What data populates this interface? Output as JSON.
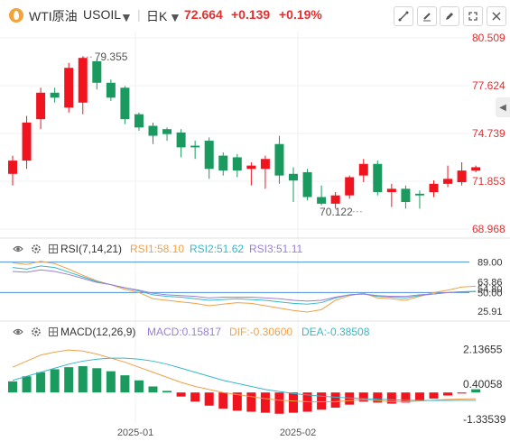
{
  "header": {
    "symbol_name": "WTI原油",
    "symbol_code": "USOIL",
    "period": "日K",
    "price": "72.664",
    "change": "+0.139",
    "change_pct": "+0.19%"
  },
  "colors": {
    "up": "#f0141e",
    "down": "#1a9a5f",
    "price_text": "#e03131",
    "grid": "#eef0f3",
    "rsi1": "#f0a14a",
    "rsi2": "#38b8c8",
    "rsi3": "#9b7fd4",
    "macd_line": "#f0a14a",
    "dif_line": "#f0a14a",
    "dea_line": "#38b8c8"
  },
  "rsi_header": {
    "name": "RSI(7,14,21)",
    "rsi1": "RSI1:58.10",
    "rsi2": "RSI2:51.62",
    "rsi3": "RSI3:51.11"
  },
  "macd_header": {
    "name": "MACD(12,26,9)",
    "macd": "MACD:0.15817",
    "dif": "DIF:-0.30600",
    "dea": "DEA:-0.38508"
  },
  "chart_data": [
    {
      "type": "candlestick",
      "y_ticks": [
        "80.509",
        "77.624",
        "74.739",
        "71.853",
        "68.968"
      ],
      "ylim": [
        68.968,
        80.509
      ],
      "x_labels": [
        "2025-01",
        "2025-02"
      ],
      "annotations": [
        {
          "label": "79.355",
          "index": 5,
          "value": 79.355
        },
        {
          "label": "70.122",
          "index": 25,
          "value": 70.122
        }
      ],
      "candles": [
        {
          "o": 72.3,
          "h": 73.4,
          "l": 71.6,
          "c": 73.1
        },
        {
          "o": 73.1,
          "h": 75.8,
          "l": 72.6,
          "c": 75.4
        },
        {
          "o": 75.6,
          "h": 77.5,
          "l": 75.0,
          "c": 77.2
        },
        {
          "o": 77.2,
          "h": 77.5,
          "l": 76.6,
          "c": 76.9
        },
        {
          "o": 76.3,
          "h": 79.0,
          "l": 76.0,
          "c": 78.7
        },
        {
          "o": 76.6,
          "h": 79.4,
          "l": 75.9,
          "c": 79.3
        },
        {
          "o": 79.1,
          "h": 79.2,
          "l": 77.4,
          "c": 77.8
        },
        {
          "o": 77.8,
          "h": 78.0,
          "l": 76.7,
          "c": 76.9
        },
        {
          "o": 77.5,
          "h": 77.6,
          "l": 75.3,
          "c": 75.6
        },
        {
          "o": 75.9,
          "h": 76.0,
          "l": 74.9,
          "c": 75.1
        },
        {
          "o": 75.2,
          "h": 75.4,
          "l": 74.1,
          "c": 74.6
        },
        {
          "o": 75.0,
          "h": 75.1,
          "l": 74.3,
          "c": 74.7
        },
        {
          "o": 74.8,
          "h": 75.0,
          "l": 73.3,
          "c": 73.9
        },
        {
          "o": 74.0,
          "h": 74.3,
          "l": 73.2,
          "c": 73.9
        },
        {
          "o": 74.3,
          "h": 74.5,
          "l": 72.0,
          "c": 72.6
        },
        {
          "o": 73.4,
          "h": 73.6,
          "l": 72.2,
          "c": 72.5
        },
        {
          "o": 73.3,
          "h": 73.5,
          "l": 72.1,
          "c": 72.5
        },
        {
          "o": 72.6,
          "h": 73.0,
          "l": 71.6,
          "c": 72.8
        },
        {
          "o": 72.6,
          "h": 73.4,
          "l": 71.4,
          "c": 73.2
        },
        {
          "o": 74.1,
          "h": 74.6,
          "l": 71.7,
          "c": 72.2
        },
        {
          "o": 72.3,
          "h": 72.7,
          "l": 70.6,
          "c": 71.9
        },
        {
          "o": 72.4,
          "h": 72.6,
          "l": 70.7,
          "c": 70.9
        },
        {
          "o": 70.9,
          "h": 71.6,
          "l": 70.4,
          "c": 70.5
        },
        {
          "o": 70.5,
          "h": 71.2,
          "l": 70.2,
          "c": 71.0
        },
        {
          "o": 71.0,
          "h": 72.2,
          "l": 70.8,
          "c": 72.1
        },
        {
          "o": 72.2,
          "h": 73.2,
          "l": 71.8,
          "c": 72.9
        },
        {
          "o": 72.9,
          "h": 73.1,
          "l": 71.0,
          "c": 71.2
        },
        {
          "o": 71.2,
          "h": 71.7,
          "l": 70.3,
          "c": 71.4
        },
        {
          "o": 71.4,
          "h": 71.6,
          "l": 70.2,
          "c": 70.6
        },
        {
          "o": 71.1,
          "h": 71.3,
          "l": 70.2,
          "c": 71.0
        },
        {
          "o": 71.2,
          "h": 71.9,
          "l": 70.9,
          "c": 71.7
        },
        {
          "o": 71.7,
          "h": 72.8,
          "l": 71.5,
          "c": 72.0
        },
        {
          "o": 71.8,
          "h": 73.0,
          "l": 71.6,
          "c": 72.5
        },
        {
          "o": 72.5,
          "h": 72.8,
          "l": 72.4,
          "c": 72.7
        }
      ]
    },
    {
      "type": "line",
      "y_ticks": [
        "89.00",
        "63.86",
        "54.80",
        "50.00",
        "25.91"
      ],
      "ylim": [
        18,
        92
      ],
      "reference_lines": [
        89,
        50
      ],
      "series": [
        {
          "name": "RSI1",
          "values": [
            88,
            86,
            90,
            87,
            80,
            72,
            65,
            60,
            54,
            50,
            42,
            40,
            38,
            36,
            33,
            35,
            37,
            36,
            33,
            30,
            27,
            25,
            28,
            40,
            46,
            49,
            43,
            42,
            40,
            45,
            50,
            53,
            57,
            58
          ]
        },
        {
          "name": "RSI2",
          "values": [
            82,
            80,
            84,
            82,
            76,
            70,
            64,
            60,
            56,
            52,
            47,
            45,
            44,
            42,
            40,
            41,
            42,
            41,
            40,
            38,
            36,
            35,
            37,
            43,
            47,
            48,
            45,
            44,
            43,
            46,
            48,
            50,
            51,
            51.6
          ]
        },
        {
          "name": "RSI3",
          "values": [
            77,
            76,
            79,
            77,
            73,
            68,
            63,
            60,
            56,
            53,
            49,
            47,
            46,
            45,
            43,
            44,
            44,
            44,
            43,
            42,
            40,
            39,
            40,
            44,
            47,
            48,
            46,
            45,
            45,
            47,
            48,
            50,
            51,
            51.1
          ]
        }
      ]
    },
    {
      "type": "bar",
      "y_ticks": [
        "2.13655",
        "0.40058",
        "-1.33539"
      ],
      "ylim": [
        -1.55,
        2.55
      ],
      "histogram": [
        0.55,
        0.8,
        1.0,
        1.15,
        1.25,
        1.3,
        1.2,
        1.05,
        0.85,
        0.6,
        0.3,
        0.08,
        -0.2,
        -0.45,
        -0.65,
        -0.8,
        -0.9,
        -0.95,
        -1.0,
        -1.05,
        -1.0,
        -0.95,
        -0.85,
        -0.75,
        -0.6,
        -0.45,
        -0.5,
        -0.55,
        -0.5,
        -0.4,
        -0.3,
        -0.15,
        -0.05,
        0.16
      ],
      "series": [
        {
          "name": "DIF",
          "values": [
            1.25,
            1.55,
            1.85,
            2.0,
            2.1,
            2.05,
            1.9,
            1.7,
            1.5,
            1.25,
            1.0,
            0.75,
            0.5,
            0.3,
            0.15,
            0.0,
            -0.1,
            -0.2,
            -0.3,
            -0.38,
            -0.42,
            -0.45,
            -0.46,
            -0.45,
            -0.4,
            -0.35,
            -0.4,
            -0.45,
            -0.45,
            -0.42,
            -0.38,
            -0.34,
            -0.32,
            -0.306
          ]
        },
        {
          "name": "DEA",
          "values": [
            0.6,
            0.8,
            1.0,
            1.2,
            1.4,
            1.55,
            1.65,
            1.7,
            1.7,
            1.65,
            1.55,
            1.4,
            1.2,
            1.0,
            0.8,
            0.6,
            0.45,
            0.3,
            0.15,
            0.05,
            -0.05,
            -0.12,
            -0.18,
            -0.23,
            -0.27,
            -0.3,
            -0.33,
            -0.36,
            -0.38,
            -0.39,
            -0.39,
            -0.39,
            -0.388,
            -0.385
          ]
        }
      ]
    }
  ]
}
